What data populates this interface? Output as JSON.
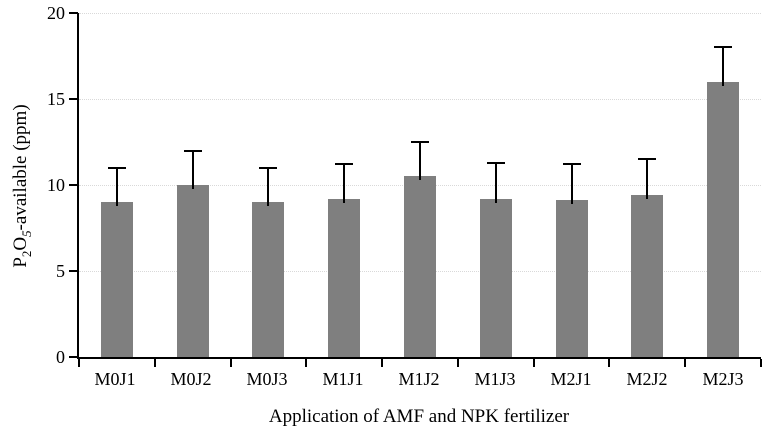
{
  "figure": {
    "background_color": "#ffffff",
    "text_color": "#000000"
  },
  "chart_data": {
    "type": "bar",
    "title": "",
    "categories": [
      "M0J1",
      "M0J2",
      "M0J3",
      "M1J1",
      "M1J2",
      "M1J3",
      "M2J1",
      "M2J2",
      "M2J3"
    ],
    "values": [
      9.0,
      10.0,
      9.0,
      9.2,
      10.5,
      9.2,
      9.1,
      9.4,
      16.0
    ],
    "errors_upper": [
      2.0,
      2.0,
      2.0,
      2.0,
      2.0,
      2.1,
      2.1,
      2.1,
      2.0
    ],
    "xlabel": "Application of AMF and NPK fertilizer",
    "ylabel": "P2O5-available (ppm)",
    "ylabel_parts": {
      "p": "P",
      "sub2": "2",
      "o": "O",
      "sub5": "5",
      "rest": "-available (ppm)"
    },
    "ylim": [
      0,
      20
    ],
    "yticks": [
      0,
      5,
      10,
      15,
      20
    ],
    "grid": {
      "horizontal": true,
      "style": "dotted",
      "color": "#d9d9d9"
    },
    "legend_position": "none",
    "bar_color": "#7f7f7f",
    "error_bar_color": "#000000",
    "axis_color": "#000000"
  }
}
